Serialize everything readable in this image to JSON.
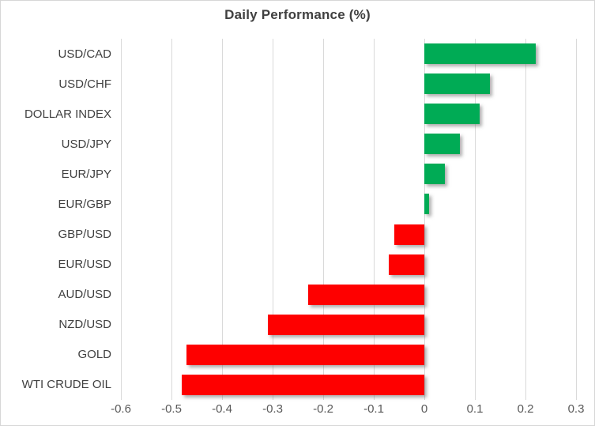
{
  "chart": {
    "title": "Daily Performance (%)",
    "colors": {
      "positive_bar": "#00AB55",
      "negative_bar": "#FE0000",
      "gridline": "#D9D9D9",
      "title_text": "#404040",
      "category_text": "#404040",
      "tick_text": "#595959",
      "background": "#FFFFFF",
      "frame_border": "#D6D6D6"
    }
  },
  "chart_data": {
    "type": "bar",
    "orientation": "horizontal",
    "title": "Daily Performance (%)",
    "categories": [
      "USD/CAD",
      "USD/CHF",
      "DOLLAR INDEX",
      "USD/JPY",
      "EUR/JPY",
      "EUR/GBP",
      "GBP/USD",
      "EUR/USD",
      "AUD/USD",
      "NZD/USD",
      "GOLD",
      "WTI CRUDE OIL"
    ],
    "values": [
      0.22,
      0.13,
      0.11,
      0.07,
      0.04,
      0.01,
      -0.06,
      -0.07,
      -0.23,
      -0.31,
      -0.47,
      -0.48
    ],
    "xlabel": "",
    "ylabel": "",
    "xlim": [
      -0.6,
      0.3
    ],
    "xticks": [
      -0.6,
      -0.5,
      -0.4,
      -0.3,
      -0.2,
      -0.1,
      0,
      0.1,
      0.2,
      0.3
    ],
    "xtick_labels": [
      "-0.6",
      "-0.5",
      "-0.4",
      "-0.3",
      "-0.2",
      "-0.1",
      "0",
      "0.1",
      "0.2",
      "0.3"
    ],
    "grid": "vertical-only",
    "legend": "none"
  }
}
